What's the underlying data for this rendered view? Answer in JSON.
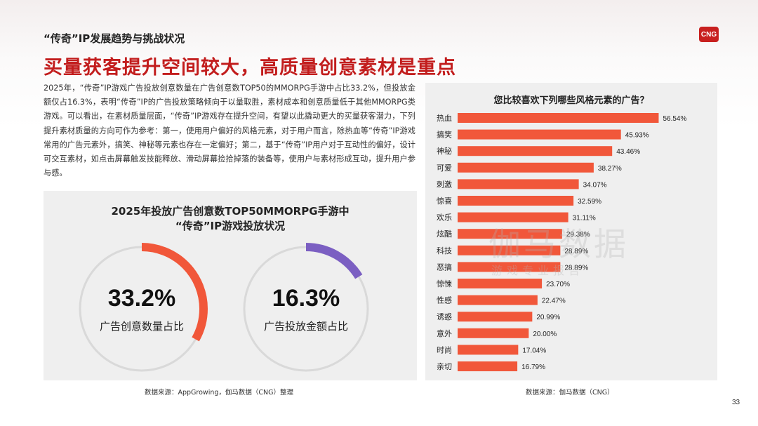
{
  "header": {
    "section_title": "“传奇”IP发展趋势与挑战状况",
    "logo_text": "CNG",
    "headline": "买量获客提升空间较大，高质量创意素材是重点"
  },
  "body_text": "2025年，“传奇”IP游戏广告投放创意数量在广告创意数TOP50的MMORPG手游中占比33.2%，但投放金额仅占16.3%，表明“传奇”IP的广告投放策略倾向于以量取胜，素材成本和创意质量低于其他MMORPG类游戏。可以看出，在素材质量层面，“传奇”IP游戏存在提升空间，有望以此撬动更大的买量获客潜力，下列提升素材质量的方向可作为参考：第一，使用用户偏好的风格元素，对于用户而言，除热血等“传奇”IP游戏常用的广告元素外，搞笑、神秘等元素也存在一定偏好；第二，基于“传奇”IP用户对于互动性的偏好，设计可交互素材，如点击屏幕触发技能释放、滑动屏幕捡拾掉落的装备等，使用户与素材形成互动，提升用户参与感。",
  "donut_panel": {
    "title_line1": "2025年投放广告创意数TOP50MMORPG手游中",
    "title_line2": "“传奇”IP游戏投放状况",
    "source": "数据来源：AppGrowing，伽马数据（CNG）整理"
  },
  "bar_panel": {
    "source": "数据来源：伽马数据（CNG）"
  },
  "watermark": {
    "main": "伽马数据",
    "sub": "游戏专业报告"
  },
  "page_number": "33",
  "colors": {
    "accent_red": "#c21d1d",
    "bar": "#f1573a",
    "donut_orange": "#f1573a",
    "donut_purple": "#7b5fc2",
    "track": "#d9d9d9"
  },
  "chart_data": [
    {
      "type": "pie",
      "subtype": "donut",
      "value": 33.2,
      "value_label": "33.2%",
      "label": "广告创意数量占比",
      "color": "#f1573a"
    },
    {
      "type": "pie",
      "subtype": "donut",
      "value": 16.3,
      "value_label": "16.3%",
      "label": "广告投放金额占比",
      "color": "#7b5fc2"
    },
    {
      "type": "bar",
      "orientation": "horizontal",
      "title": "您比较喜欢下列哪些风格元素的广告？",
      "categories": [
        "热血",
        "搞笑",
        "神秘",
        "可爱",
        "刺激",
        "惊喜",
        "欢乐",
        "炫酷",
        "科技",
        "恶搞",
        "惊悚",
        "性感",
        "诱惑",
        "意外",
        "时尚",
        "亲切"
      ],
      "values": [
        56.54,
        45.93,
        43.46,
        38.27,
        34.07,
        32.59,
        31.11,
        29.38,
        28.89,
        28.89,
        23.7,
        22.47,
        20.99,
        20.0,
        17.04,
        16.79
      ],
      "value_labels": [
        "56.54%",
        "45.93%",
        "43.46%",
        "38.27%",
        "34.07%",
        "32.59%",
        "31.11%",
        "29.38%",
        "28.89%",
        "28.89%",
        "23.70%",
        "22.47%",
        "20.99%",
        "20.00%",
        "17.04%",
        "16.79%"
      ],
      "xlim": [
        0,
        60
      ],
      "grid": false
    }
  ]
}
